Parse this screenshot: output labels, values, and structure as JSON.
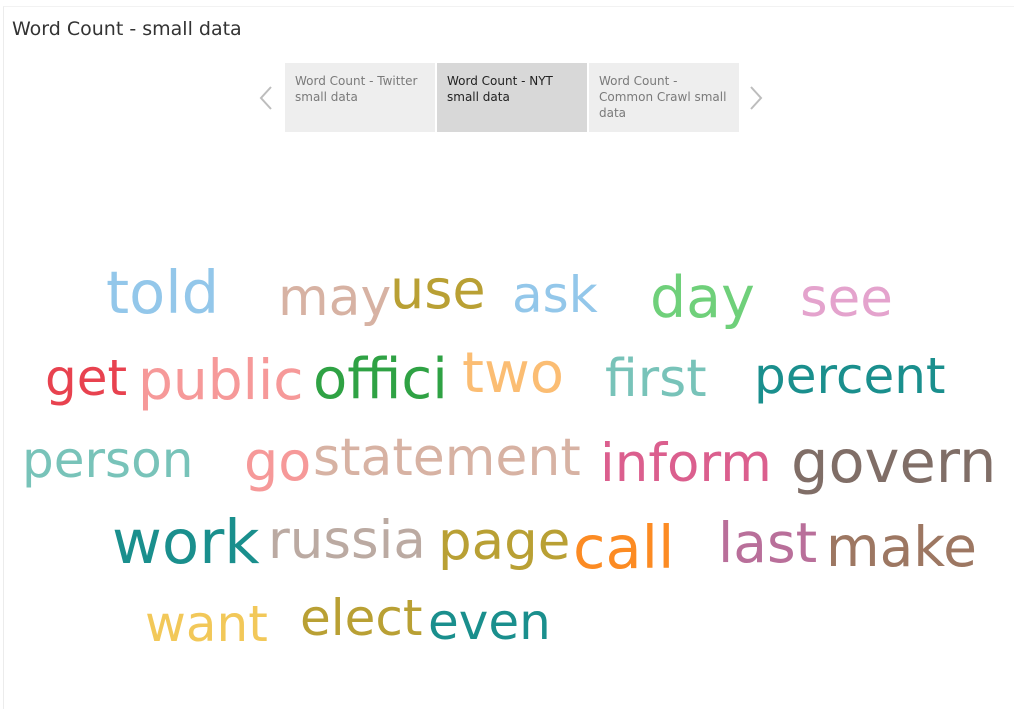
{
  "dashboard": {
    "title": "Word Count - small data"
  },
  "tabs": [
    {
      "label": "Word Count - Twitter small data",
      "active": false
    },
    {
      "label": "Word Count - NYT small data",
      "active": true
    },
    {
      "label": "Word Count - Common Crawl small data",
      "active": false
    }
  ],
  "nav": {
    "prev_icon": "chevron-left-icon",
    "next_icon": "chevron-right-icon"
  },
  "word_cloud": {
    "words": [
      {
        "text": "told",
        "color": "#93c7ea"
      },
      {
        "text": "may",
        "color": "#d7b2a3"
      },
      {
        "text": "use",
        "color": "#b9a034"
      },
      {
        "text": "ask",
        "color": "#93c7ea"
      },
      {
        "text": "day",
        "color": "#6fd07a"
      },
      {
        "text": "see",
        "color": "#e4a3cd"
      },
      {
        "text": "get",
        "color": "#e8424f"
      },
      {
        "text": "public",
        "color": "#f69999"
      },
      {
        "text": "offici",
        "color": "#2fa244"
      },
      {
        "text": "two",
        "color": "#fbbd73"
      },
      {
        "text": "first",
        "color": "#78c3b9"
      },
      {
        "text": "percent",
        "color": "#1a8f8d"
      },
      {
        "text": "person",
        "color": "#78c3b9"
      },
      {
        "text": "go",
        "color": "#f69999"
      },
      {
        "text": "statement",
        "color": "#d7b2a3"
      },
      {
        "text": "inform",
        "color": "#db5f8e"
      },
      {
        "text": "govern",
        "color": "#806e67"
      },
      {
        "text": "work",
        "color": "#1a8f8d"
      },
      {
        "text": "russia",
        "color": "#bbaaa2"
      },
      {
        "text": "page",
        "color": "#b9a034"
      },
      {
        "text": "call",
        "color": "#fc8b23"
      },
      {
        "text": "last",
        "color": "#b96f9a"
      },
      {
        "text": "make",
        "color": "#9d7762"
      },
      {
        "text": "want",
        "color": "#f2c859"
      },
      {
        "text": "elect",
        "color": "#b9a034"
      },
      {
        "text": "even",
        "color": "#1a8f8d"
      }
    ]
  }
}
